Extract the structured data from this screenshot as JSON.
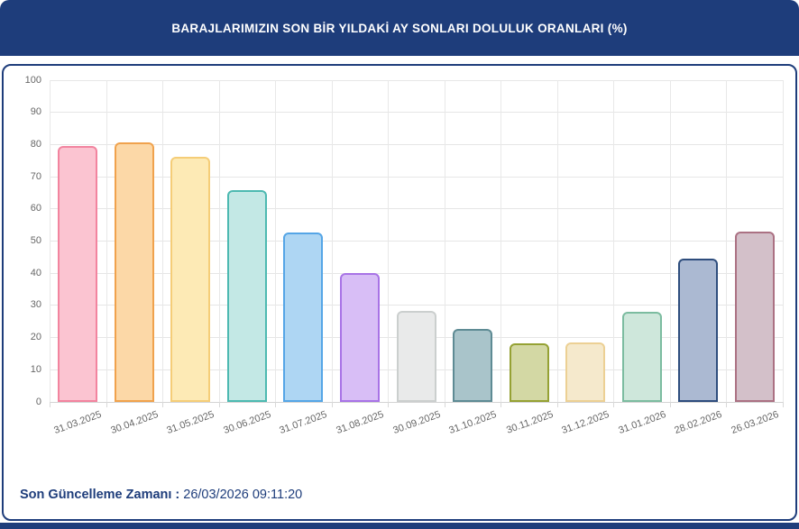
{
  "header": {
    "title": "BARAJLARIMIZIN SON BİR YILDAKİ AY SONLARI DOLULUK ORANLARI (%)",
    "background": "#1e3d7b",
    "text_color": "#ffffff"
  },
  "footer": {
    "label": "Son Güncelleme Zamanı",
    "separator": ":",
    "value": "26/03/2026 09:11:20",
    "text_color": "#1e3d7b"
  },
  "chart_data": {
    "type": "bar",
    "title": "BARAJLARIMIZIN SON BİR YILDAKİ AY SONLARI DOLULUK ORANLARI (%)",
    "categories": [
      "31.03.2025",
      "30.04.2025",
      "31.05.2025",
      "30.06.2025",
      "31.07.2025",
      "31.08.2025",
      "30.09.2025",
      "31.10.2025",
      "30.11.2025",
      "31.12.2025",
      "31.01.2026",
      "28.02.2026",
      "26.03.2026"
    ],
    "values": [
      79.6,
      80.8,
      76.2,
      65.9,
      52.8,
      40.1,
      28.4,
      22.6,
      18.1,
      18.4,
      27.9,
      44.5,
      52.9
    ],
    "xlabel": "",
    "ylabel": "",
    "ylim": [
      0,
      100
    ],
    "ytick_step": 10,
    "grid": true,
    "legend": false,
    "gridline_color": "#e6e6e6",
    "axis_label_color": "#666666",
    "bar_colors": [
      {
        "fill": "#fbc4d1",
        "stroke": "#f2849f"
      },
      {
        "fill": "#fcd8a7",
        "stroke": "#f0a24d"
      },
      {
        "fill": "#fdeab5",
        "stroke": "#f5cd78"
      },
      {
        "fill": "#c3e8e5",
        "stroke": "#4db9b1"
      },
      {
        "fill": "#aed6f3",
        "stroke": "#55a5e6"
      },
      {
        "fill": "#d8bef6",
        "stroke": "#a873e6"
      },
      {
        "fill": "#e9eaea",
        "stroke": "#cbcfce"
      },
      {
        "fill": "#a9c4ca",
        "stroke": "#5e8b94"
      },
      {
        "fill": "#d3d8a4",
        "stroke": "#95a133"
      },
      {
        "fill": "#f5e9cc",
        "stroke": "#ecd094"
      },
      {
        "fill": "#cee7db",
        "stroke": "#7cbca0"
      },
      {
        "fill": "#abb9d2",
        "stroke": "#2e4d7d"
      },
      {
        "fill": "#d3c0c9",
        "stroke": "#ab7183"
      }
    ]
  }
}
